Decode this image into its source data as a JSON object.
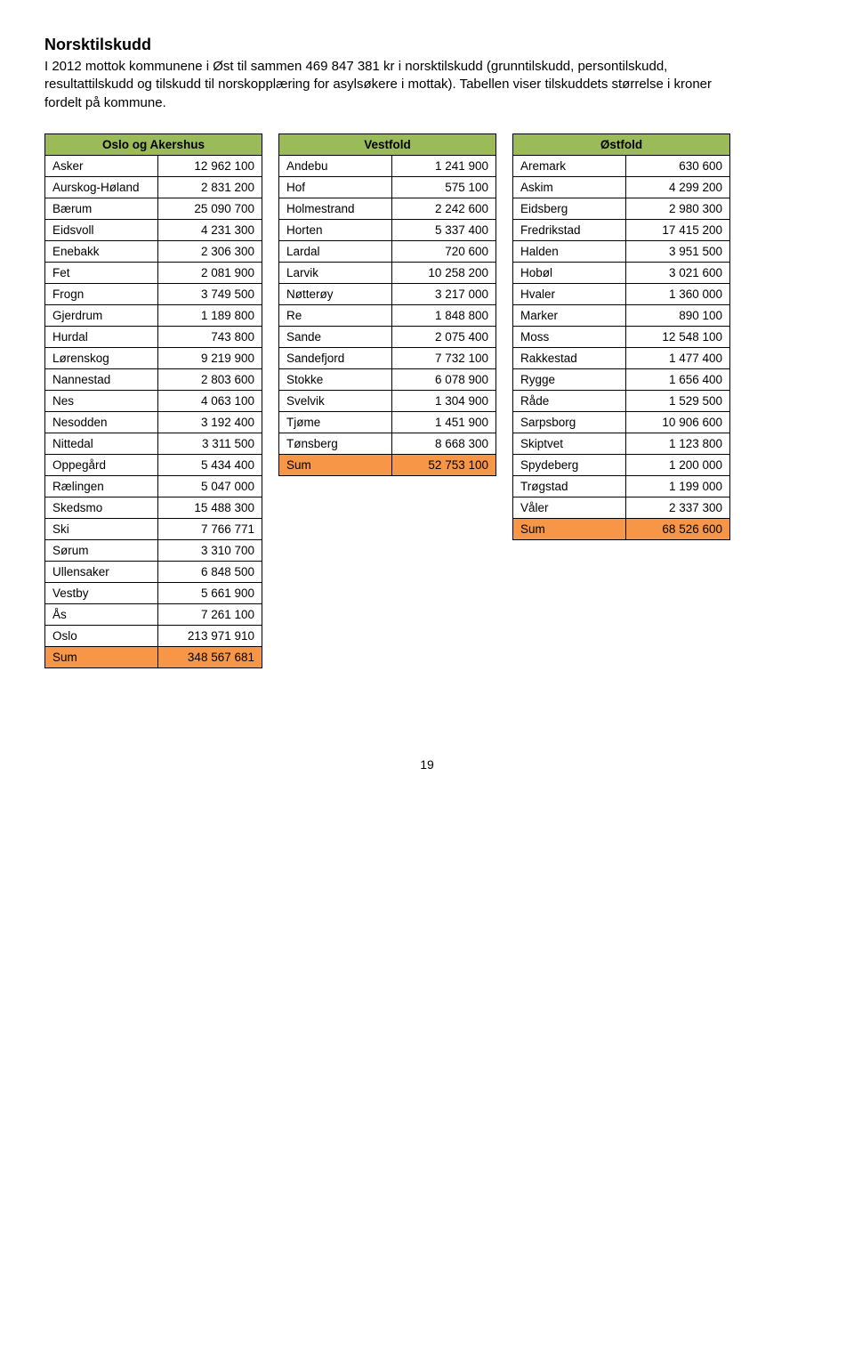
{
  "heading": "Norsktilskudd",
  "intro": "I 2012 mottok kommunene i Øst til sammen 469 847 381 kr i norsktilskudd (grunntilskudd, persontilskudd, resultattilskudd og tilskudd til norskopplæring for asylsøkere i mottak). Tabellen viser tilskuddets størrelse i kroner fordelt på kommune.",
  "tables": {
    "oslo": {
      "title": "Oslo og Akershus",
      "rows": [
        [
          "Asker",
          "12 962 100"
        ],
        [
          "Aurskog-Høland",
          "2 831 200"
        ],
        [
          "Bærum",
          "25 090 700"
        ],
        [
          "Eidsvoll",
          "4 231 300"
        ],
        [
          "Enebakk",
          "2 306 300"
        ],
        [
          "Fet",
          "2 081 900"
        ],
        [
          "Frogn",
          "3 749 500"
        ],
        [
          "Gjerdrum",
          "1 189 800"
        ],
        [
          "Hurdal",
          "743 800"
        ],
        [
          "Lørenskog",
          "9 219 900"
        ],
        [
          "Nannestad",
          "2 803 600"
        ],
        [
          "Nes",
          "4 063 100"
        ],
        [
          "Nesodden",
          "3 192 400"
        ],
        [
          "Nittedal",
          "3 311 500"
        ],
        [
          "Oppegård",
          "5 434 400"
        ],
        [
          "Rælingen",
          "5 047 000"
        ],
        [
          "Skedsmo",
          "15 488 300"
        ],
        [
          "Ski",
          "7 766 771"
        ],
        [
          "Sørum",
          "3 310 700"
        ],
        [
          "Ullensaker",
          "6 848 500"
        ],
        [
          "Vestby",
          "5 661 900"
        ],
        [
          "Ås",
          "7 261 100"
        ],
        [
          "Oslo",
          "213 971 910"
        ]
      ],
      "sum_label": "Sum",
      "sum_value": "348 567 681"
    },
    "vestfold": {
      "title": "Vestfold",
      "rows": [
        [
          "Andebu",
          "1 241 900"
        ],
        [
          "Hof",
          "575 100"
        ],
        [
          "Holmestrand",
          "2 242 600"
        ],
        [
          "Horten",
          "5 337 400"
        ],
        [
          "Lardal",
          "720 600"
        ],
        [
          "Larvik",
          "10 258 200"
        ],
        [
          "Nøtterøy",
          "3 217 000"
        ],
        [
          "Re",
          "1 848 800"
        ],
        [
          "Sande",
          "2 075 400"
        ],
        [
          "Sandefjord",
          "7 732 100"
        ],
        [
          "Stokke",
          "6 078 900"
        ],
        [
          "Svelvik",
          "1 304 900"
        ],
        [
          "Tjøme",
          "1 451 900"
        ],
        [
          "Tønsberg",
          "8 668 300"
        ]
      ],
      "sum_label": "Sum",
      "sum_value": "52 753 100"
    },
    "ostfold": {
      "title": "Østfold",
      "rows": [
        [
          "Aremark",
          "630 600"
        ],
        [
          "Askim",
          "4 299 200"
        ],
        [
          "Eidsberg",
          "2 980 300"
        ],
        [
          "Fredrikstad",
          "17 415 200"
        ],
        [
          "Halden",
          "3 951 500"
        ],
        [
          "Hobøl",
          "3 021 600"
        ],
        [
          "Hvaler",
          "1 360 000"
        ],
        [
          "Marker",
          "890 100"
        ],
        [
          "Moss",
          "12 548 100"
        ],
        [
          "Rakkestad",
          "1 477 400"
        ],
        [
          "Rygge",
          "1 656 400"
        ],
        [
          "Råde",
          "1 529 500"
        ],
        [
          "Sarpsborg",
          "10 906 600"
        ],
        [
          "Skiptvet",
          "1 123 800"
        ],
        [
          "Spydeberg",
          "1 200 000"
        ],
        [
          "Trøgstad",
          "1 199 000"
        ],
        [
          "Våler",
          "2 337 300"
        ]
      ],
      "sum_label": "Sum",
      "sum_value": "68 526 600"
    }
  },
  "col_widths": {
    "name": 110,
    "value": 100
  },
  "page_number": "19"
}
